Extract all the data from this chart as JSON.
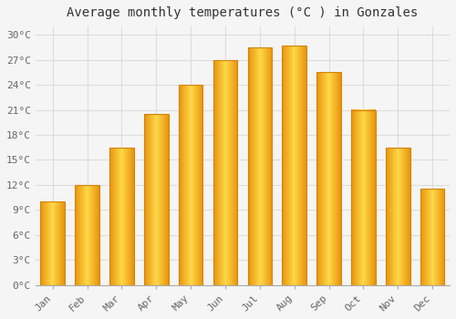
{
  "title": "Average monthly temperatures (°C ) in Gonzales",
  "months": [
    "Jan",
    "Feb",
    "Mar",
    "Apr",
    "May",
    "Jun",
    "Jul",
    "Aug",
    "Sep",
    "Oct",
    "Nov",
    "Dec"
  ],
  "values": [
    10,
    12,
    16.5,
    20.5,
    24,
    27,
    28.5,
    28.7,
    25.5,
    21,
    16.5,
    11.5
  ],
  "bar_color_center": "#FFD04C",
  "bar_color_edge": "#F5A800",
  "background_color": "#F5F5F5",
  "plot_bg_color": "#F5F5F5",
  "ytick_labels": [
    "0°C",
    "3°C",
    "6°C",
    "9°C",
    "12°C",
    "15°C",
    "18°C",
    "21°C",
    "24°C",
    "27°C",
    "30°C"
  ],
  "ytick_values": [
    0,
    3,
    6,
    9,
    12,
    15,
    18,
    21,
    24,
    27,
    30
  ],
  "ylim": [
    0,
    31
  ],
  "grid_color": "#DDDDDD",
  "title_fontsize": 10,
  "tick_fontsize": 8,
  "font_family": "monospace",
  "bar_width": 0.7
}
